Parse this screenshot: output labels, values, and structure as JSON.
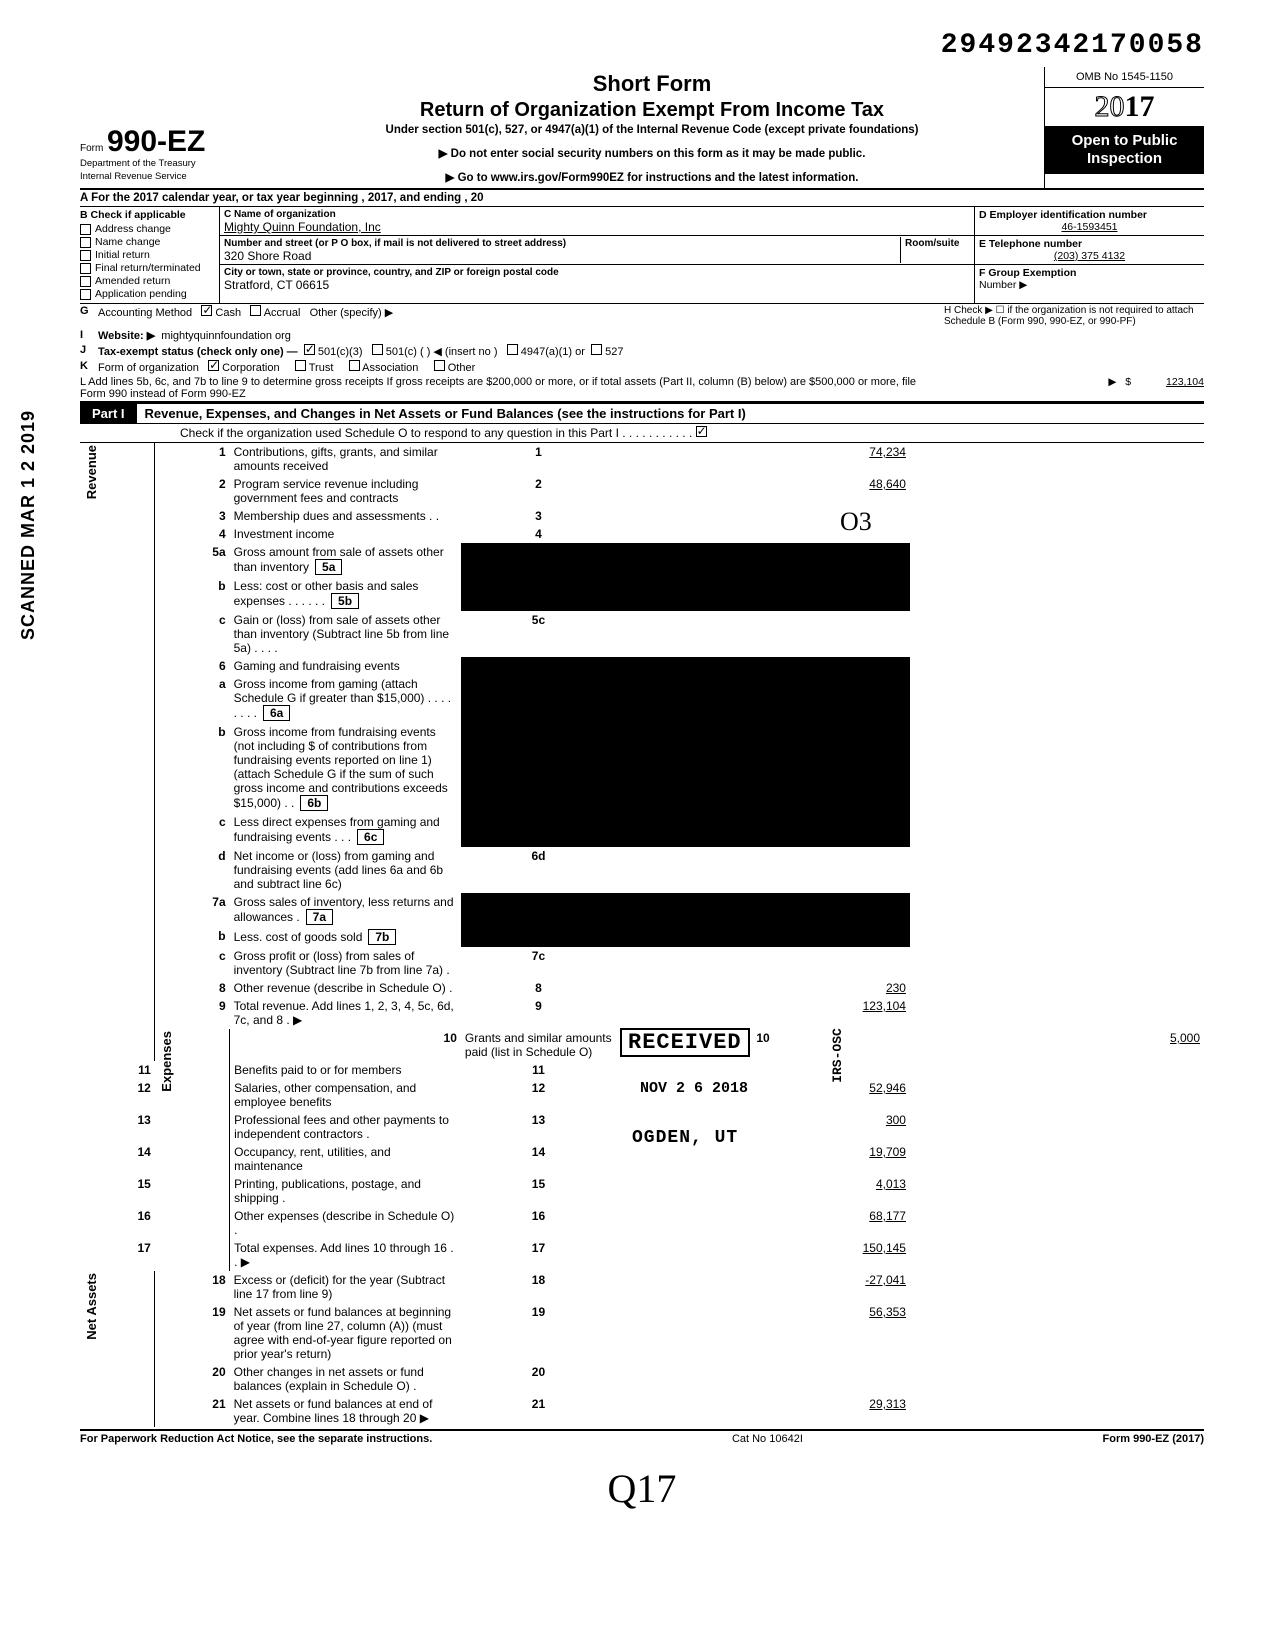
{
  "top_number": "29492342170058",
  "form_prefix": "Form",
  "form_number": "990-EZ",
  "omb": "OMB No 1545-1150",
  "tax_year": "2017",
  "title1": "Short Form",
  "title2": "Return of Organization Exempt From Income Tax",
  "subtitle": "Under section 501(c), 527, or 4947(a)(1) of the Internal Revenue Code (except private foundations)",
  "arrow1": "▶ Do not enter social security numbers on this form as it may be made public.",
  "arrow2": "▶ Go to www.irs.gov/Form990EZ for instructions and the latest information.",
  "open_public_1": "Open to Public",
  "open_public_2": "Inspection",
  "dept": "Department of the Treasury",
  "irs": "Internal Revenue Service",
  "sideways_stamp": "SCANNED MAR 1 2 2019",
  "row_a": "A  For the 2017 calendar year, or tax year beginning                                                   , 2017, and ending                                 , 20",
  "col_b": {
    "header": "B  Check if applicable",
    "items": [
      "Address change",
      "Name change",
      "Initial return",
      "Final return/terminated",
      "Amended return",
      "Application pending"
    ]
  },
  "col_c": {
    "name_lbl": "C  Name of organization",
    "name_val": "Mighty Quinn Foundation, Inc",
    "addr_lbl": "Number and street (or P O  box, if mail is not delivered to street address)",
    "room_lbl": "Room/suite",
    "addr_val": "320 Shore Road",
    "city_lbl": "City or town, state or province, country, and ZIP or foreign postal code",
    "city_val": "Stratford, CT 06615"
  },
  "col_d": {
    "hd": "D Employer identification number",
    "val": "46-1593451"
  },
  "col_e": {
    "hd": "E  Telephone number",
    "val": "(203) 375 4132"
  },
  "col_f": {
    "hd": "F  Group Exemption",
    "hd2": "Number ▶"
  },
  "row_g": {
    "lead": "G",
    "text": "Accounting Method",
    "opts": [
      "Cash",
      "Accrual"
    ],
    "other": "Other (specify) ▶",
    "checked": 0
  },
  "row_h": "H  Check ▶ ☐ if the organization is not required to attach Schedule B (Form 990, 990-EZ, or 990-PF)",
  "row_i": {
    "lead": "I",
    "label": "Website: ▶",
    "val": "mightyquinnfoundation org"
  },
  "row_j": {
    "lead": "J",
    "text": "Tax-exempt status (check only one) —",
    "opts": [
      "501(c)(3)",
      "501(c) (        ) ◀ (insert no )",
      "4947(a)(1) or",
      "527"
    ],
    "checked": 0
  },
  "row_k": {
    "lead": "K",
    "text": "Form of organization",
    "opts": [
      "Corporation",
      "Trust",
      "Association",
      "Other"
    ],
    "checked": 0
  },
  "row_l": "L  Add lines 5b, 6c, and 7b to line 9 to determine gross receipts  If gross receipts are $200,000 or more, or if total assets (Part II, column (B) below) are $500,000 or more, file Form 990 instead of Form 990-EZ",
  "row_l_amt": "123,104",
  "part1": {
    "label": "Part I",
    "title": "Revenue, Expenses, and Changes in Net Assets or Fund Balances (see the instructions for Part I)",
    "check_line": "Check if the organization used Schedule O to respond to any question in this Part I .  .  .  .  .  .  .  .  .  .  .",
    "checked": true
  },
  "sections": {
    "revenue": "Revenue",
    "expenses": "Expenses",
    "netassets": "Net Assets"
  },
  "lines": {
    "l1": {
      "n": "1",
      "t": "Contributions, gifts, grants, and similar amounts received",
      "box": "1",
      "amt": "74,234"
    },
    "l2": {
      "n": "2",
      "t": "Program service revenue including government fees and contracts",
      "box": "2",
      "amt": "48,640"
    },
    "l3": {
      "n": "3",
      "t": "Membership dues and assessments .  .",
      "box": "3",
      "amt": ""
    },
    "l4": {
      "n": "4",
      "t": "Investment income",
      "box": "4",
      "amt": ""
    },
    "l5a": {
      "n": "5a",
      "t": "Gross amount from sale of assets other than inventory",
      "mid": "5a"
    },
    "l5b": {
      "n": "b",
      "t": "Less: cost or other basis and sales expenses .  .  .  .  .  .",
      "mid": "5b"
    },
    "l5c": {
      "n": "c",
      "t": "Gain or (loss) from sale of assets other than inventory (Subtract line 5b from line 5a) .  .  .  .",
      "box": "5c",
      "amt": ""
    },
    "l6": {
      "n": "6",
      "t": "Gaming and fundraising events"
    },
    "l6a": {
      "n": "a",
      "t": "Gross income from gaming (attach Schedule G if greater than $15,000) .  .  .  .  .  .  .  .",
      "mid": "6a"
    },
    "l6b": {
      "n": "b",
      "t": "Gross income from fundraising events (not including  $                            of contributions from fundraising events reported on line 1) (attach Schedule G if the sum of such gross income and contributions exceeds $15,000) .  .",
      "mid": "6b"
    },
    "l6c": {
      "n": "c",
      "t": "Less  direct expenses from gaming and fundraising events  .  .  .",
      "mid": "6c"
    },
    "l6d": {
      "n": "d",
      "t": "Net income or (loss) from gaming and fundraising events (add lines 6a and 6b and subtract line 6c)",
      "box": "6d",
      "amt": ""
    },
    "l7a": {
      "n": "7a",
      "t": "Gross sales of inventory, less returns and allowances .",
      "mid": "7a"
    },
    "l7b": {
      "n": "b",
      "t": "Less. cost of goods sold",
      "mid": "7b"
    },
    "l7c": {
      "n": "c",
      "t": "Gross profit or (loss) from sales of inventory (Subtract line 7b from line 7a)  .",
      "box": "7c",
      "amt": ""
    },
    "l8": {
      "n": "8",
      "t": "Other revenue (describe in Schedule O) .",
      "box": "8",
      "amt": "230"
    },
    "l9": {
      "n": "9",
      "t": "Total revenue. Add lines 1, 2, 3, 4, 5c, 6d, 7c, and 8  .",
      "box": "9",
      "amt": "123,104",
      "arrow": "▶"
    },
    "l10": {
      "n": "10",
      "t": "Grants and similar amounts paid (list in Schedule O)",
      "box": "10",
      "amt": "5,000"
    },
    "l11": {
      "n": "11",
      "t": "Benefits paid to or for members",
      "box": "11",
      "amt": ""
    },
    "l12": {
      "n": "12",
      "t": "Salaries, other compensation, and employee benefits",
      "box": "12",
      "amt": "52,946"
    },
    "l13": {
      "n": "13",
      "t": "Professional fees and other payments to independent contractors  .",
      "box": "13",
      "amt": "300"
    },
    "l14": {
      "n": "14",
      "t": "Occupancy, rent, utilities, and maintenance",
      "box": "14",
      "amt": "19,709"
    },
    "l15": {
      "n": "15",
      "t": "Printing, publications, postage, and shipping .",
      "box": "15",
      "amt": "4,013"
    },
    "l16": {
      "n": "16",
      "t": "Other expenses (describe in Schedule O)  .",
      "box": "16",
      "amt": "68,177"
    },
    "l17": {
      "n": "17",
      "t": "Total expenses. Add lines 10 through 16 .  .",
      "box": "17",
      "amt": "150,145",
      "arrow": "▶"
    },
    "l18": {
      "n": "18",
      "t": "Excess or (deficit) for the year (Subtract line 17 from line 9)",
      "box": "18",
      "amt": "-27,041"
    },
    "l19": {
      "n": "19",
      "t": "Net assets or fund balances at beginning of year (from line 27, column (A)) (must agree with end-of-year figure reported on prior year's return)",
      "box": "19",
      "amt": "56,353"
    },
    "l20": {
      "n": "20",
      "t": "Other changes in net assets or fund balances (explain in Schedule O) .",
      "box": "20",
      "amt": ""
    },
    "l21": {
      "n": "21",
      "t": "Net assets or fund balances at end of year. Combine lines 18 through 20",
      "box": "21",
      "amt": "29,313",
      "arrow": "▶"
    }
  },
  "footer": {
    "left": "For Paperwork Reduction Act Notice, see the separate instructions.",
    "mid": "Cat  No  10642I",
    "right": "Form 990-EZ (2017)"
  },
  "stamps": {
    "received": "RECEIVED",
    "date": "NOV 2 6 2018",
    "ogden": "OGDEN, UT",
    "osc": "IRS-OSC",
    "hand_o3": "O3",
    "hand_q17": "Q17"
  }
}
